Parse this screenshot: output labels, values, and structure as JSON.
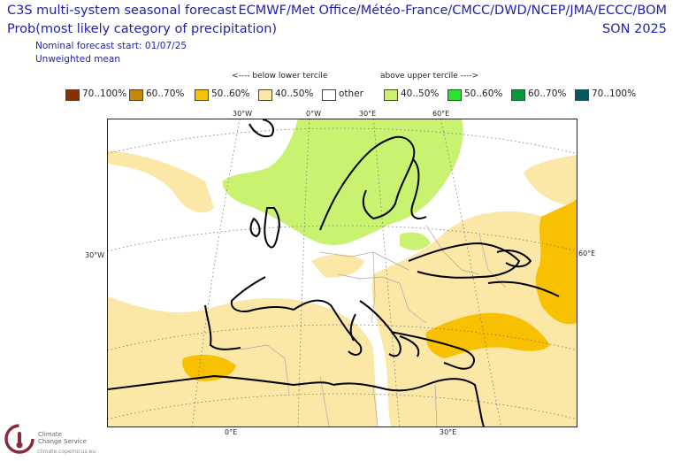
{
  "header": {
    "title": "C3S multi-system seasonal forecast",
    "subtitle": "Prob(most likely category of precipitation)",
    "models": "ECMWF/Met Office/Météo-France/CMCC/DWD/NCEP/JMA/ECCC/BOM",
    "season": "SON 2025",
    "start": "Nominal forecast start: 01/07/25",
    "weighting": "Unweighted mean"
  },
  "legend": {
    "lower_caption": "<---- below lower tercile",
    "upper_caption": "above upper tercile ---->",
    "items": [
      {
        "label": "70..100%",
        "color": "#8b2e00"
      },
      {
        "label": "60..70%",
        "color": "#c8860a"
      },
      {
        "label": "50..60%",
        "color": "#f7c000"
      },
      {
        "label": "40..50%",
        "color": "#fbe7a6"
      },
      {
        "label": "other",
        "color": "#ffffff"
      },
      {
        "label": "40..50%",
        "color": "#c9f270"
      },
      {
        "label": "50..60%",
        "color": "#2be32b"
      },
      {
        "label": "60..70%",
        "color": "#069a3a"
      },
      {
        "label": "70..100%",
        "color": "#005a5f"
      }
    ]
  },
  "axes": {
    "top_ticks": [
      "30°W",
      "0°W",
      "30°E",
      "60°E"
    ],
    "left_tick": "30°W",
    "right_tick": "60°E",
    "bottom_ticks": [
      "0°E",
      "30°E"
    ]
  },
  "branding": {
    "name_line1": "Climate",
    "name_line2": "Change Service",
    "url": "climate.copernicus.eu"
  }
}
